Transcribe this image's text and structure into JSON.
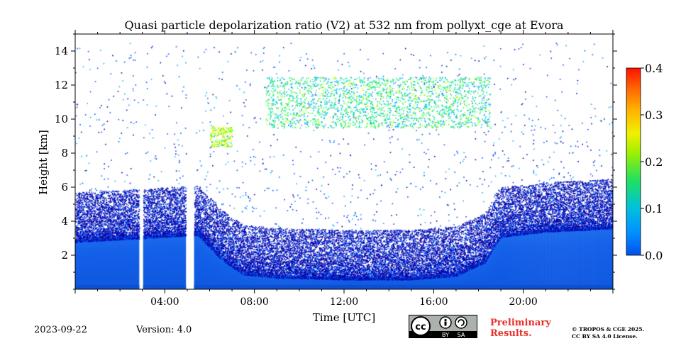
{
  "chart_data": {
    "type": "heatmap",
    "title": "Quasi particle depolarization ratio (V2) at 532 nm from pollyxt_cge at Evora",
    "xlabel": "Time [UTC]",
    "ylabel": "Height [km]",
    "x_range_hours": [
      0,
      24
    ],
    "y_range_km": [
      0,
      15
    ],
    "x_ticks": [
      {
        "value": 4,
        "label": "04:00"
      },
      {
        "value": 8,
        "label": "08:00"
      },
      {
        "value": 12,
        "label": "12:00"
      },
      {
        "value": 16,
        "label": "16:00"
      },
      {
        "value": 20,
        "label": "20:00"
      }
    ],
    "y_ticks": [
      {
        "value": 2,
        "label": "2"
      },
      {
        "value": 4,
        "label": "4"
      },
      {
        "value": 6,
        "label": "6"
      },
      {
        "value": 8,
        "label": "8"
      },
      {
        "value": 10,
        "label": "10"
      },
      {
        "value": 12,
        "label": "12"
      },
      {
        "value": 14,
        "label": "14"
      }
    ],
    "colorbar": {
      "range": [
        0.0,
        0.4
      ],
      "ticks": [
        {
          "value": 0.0,
          "label": "0.0"
        },
        {
          "value": 0.1,
          "label": "0.1"
        },
        {
          "value": 0.2,
          "label": "0.2"
        },
        {
          "value": 0.3,
          "label": "0.3"
        },
        {
          "value": 0.4,
          "label": "0.4"
        }
      ],
      "colormap": [
        "#0000a8",
        "#0050ff",
        "#00b0ff",
        "#00e0b0",
        "#40ff40",
        "#c0ff00",
        "#ffff00",
        "#ffb000",
        "#ff5000",
        "#d80000"
      ]
    },
    "boundary_layer_top_km": [
      [
        0,
        3.2
      ],
      [
        2.8,
        3.4
      ],
      [
        4,
        3.5
      ],
      [
        5.5,
        3.6
      ],
      [
        6.5,
        2.2
      ],
      [
        7.5,
        1.3
      ],
      [
        9,
        1.1
      ],
      [
        12,
        1.0
      ],
      [
        15,
        1.0
      ],
      [
        17,
        1.2
      ],
      [
        18.3,
        2.0
      ],
      [
        19,
        3.5
      ],
      [
        21,
        3.8
      ],
      [
        24,
        4.0
      ]
    ],
    "data_gaps_hours": [
      [
        2.85,
        3.0
      ],
      [
        4.95,
        5.3
      ]
    ],
    "elevated_layers": [
      {
        "time_range": [
          6.0,
          7.0
        ],
        "height_range_km": [
          8.4,
          9.6
        ],
        "depol_approx": 0.22
      },
      {
        "time_range": [
          8.5,
          18.5
        ],
        "height_range_km": [
          9.5,
          12.5
        ],
        "depol_approx": 0.15
      }
    ],
    "near_surface_depol_approx": 0.03
  },
  "footer": {
    "date": "2023-09-22",
    "version": "Version: 4.0",
    "license_badge": "cc-by-sa-icon",
    "badge_by": "BY",
    "badge_sa": "SA",
    "preliminary": [
      "Preliminary",
      "Results."
    ],
    "copyright": [
      "© TROPOS & CGE 2025.",
      "CC BY SA 4.0 License."
    ]
  }
}
